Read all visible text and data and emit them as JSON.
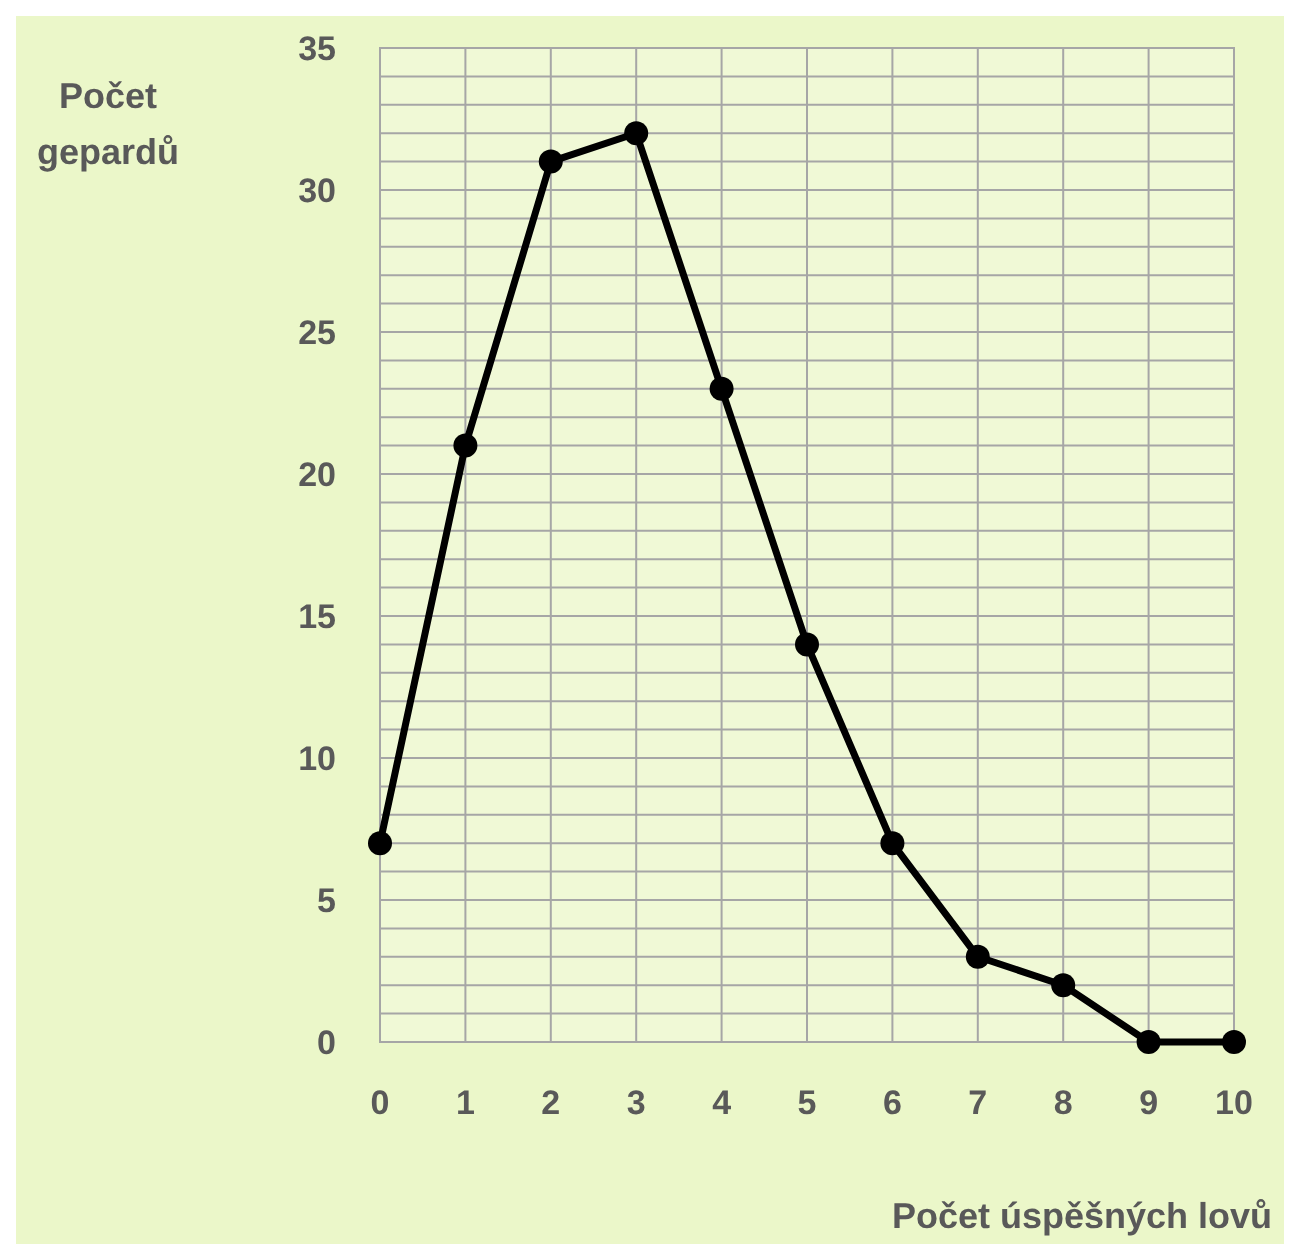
{
  "chart_data": {
    "type": "line",
    "xlabel": "Počet úspěšných lovů",
    "ylabel": "Počet gepardů",
    "x": [
      0,
      1,
      2,
      3,
      4,
      5,
      6,
      7,
      8,
      9,
      10
    ],
    "series": [
      {
        "color": "#000000",
        "values": [
          7,
          21,
          31,
          32,
          23,
          14,
          7,
          3,
          2,
          0,
          0
        ]
      }
    ],
    "xlim": [
      0,
      10
    ],
    "xticks": [
      0,
      1,
      2,
      3,
      4,
      5,
      6,
      7,
      8,
      9,
      10
    ],
    "ylim": [
      0,
      35
    ],
    "yticks": [
      0,
      {
        "value": 1,
        "label": null
      },
      {
        "value": 2,
        "label": null
      },
      {
        "value": 3,
        "label": null
      },
      {
        "value": 4,
        "label": null
      },
      5,
      {
        "value": 6,
        "label": null
      },
      {
        "value": 7,
        "label": null
      },
      {
        "value": 8,
        "label": null
      },
      {
        "value": 9,
        "label": null
      },
      10,
      {
        "value": 11,
        "label": null
      },
      {
        "value": 12,
        "label": null
      },
      {
        "value": 13,
        "label": null
      },
      {
        "value": 14,
        "label": null
      },
      15,
      {
        "value": 16,
        "label": null
      },
      {
        "value": 17,
        "label": null
      },
      {
        "value": 18,
        "label": null
      },
      {
        "value": 19,
        "label": null
      },
      20,
      {
        "value": 21,
        "label": null
      },
      {
        "value": 22,
        "label": null
      },
      {
        "value": 23,
        "label": null
      },
      {
        "value": 24,
        "label": null
      },
      25,
      {
        "value": 26,
        "label": null
      },
      {
        "value": 27,
        "label": null
      },
      {
        "value": 28,
        "label": null
      },
      {
        "value": 29,
        "label": null
      },
      30,
      {
        "value": 31,
        "label": null
      },
      {
        "value": 32,
        "label": null
      },
      {
        "value": 33,
        "label": null
      },
      {
        "value": 34,
        "label": null
      },
      35
    ],
    "grid": true,
    "marker": "circle",
    "line_style": "solid"
  }
}
